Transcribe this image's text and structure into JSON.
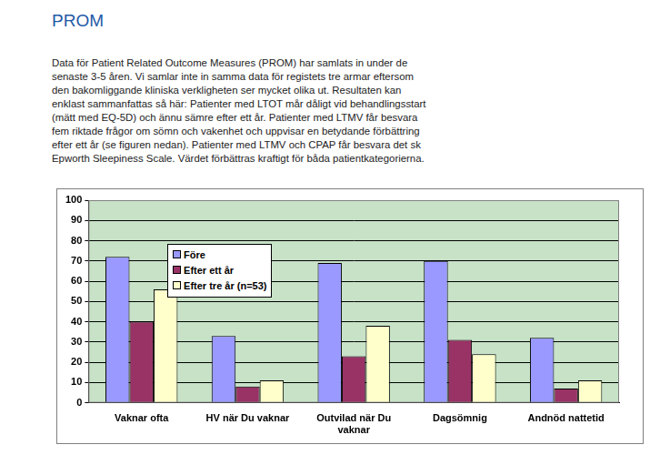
{
  "heading": "PROM",
  "paragraph": "Data för Patient Related Outcome Measures (PROM) har samlats in under de senaste 3-5 åren. Vi samlar inte in samma data för registets tre armar eftersom den bakomliggande kliniska verkligheten ser mycket olika ut. Resultaten kan enklast sammanfattas så här: Patienter med LTOT mår dåligt vid behandlingsstart (mätt med EQ-5D) och ännu sämre efter ett år. Patienter med LTMV får besvara fem riktade frågor om sömn och vakenhet och uppvisar en betydande förbättring efter ett år (se figuren nedan). Patienter med LTMV och CPAP får besvara det sk Epworth Sleepiness Scale. Värdet förbättras kraftigt för båda patientkategorierna.",
  "chart_data": {
    "type": "bar",
    "categories": [
      "Vaknar ofta",
      "HV när Du vaknar",
      "Outvilad när Du vaknar",
      "Dagsömnig",
      "Andnöd nattetid"
    ],
    "series": [
      {
        "name": "Före",
        "color": "#9999ff",
        "values": [
          72,
          33,
          69,
          70,
          32
        ]
      },
      {
        "name": "Efter ett år",
        "color": "#993366",
        "values": [
          40,
          8,
          23,
          31,
          7
        ]
      },
      {
        "name": "Efter tre år (n=53)",
        "color": "#ffffcc",
        "values": [
          56,
          11,
          38,
          24,
          11
        ]
      }
    ],
    "ylim": [
      0,
      100
    ],
    "yticks": [
      0,
      10,
      20,
      30,
      40,
      50,
      60,
      70,
      80,
      90,
      100
    ],
    "grid": true,
    "legend": "top left"
  }
}
